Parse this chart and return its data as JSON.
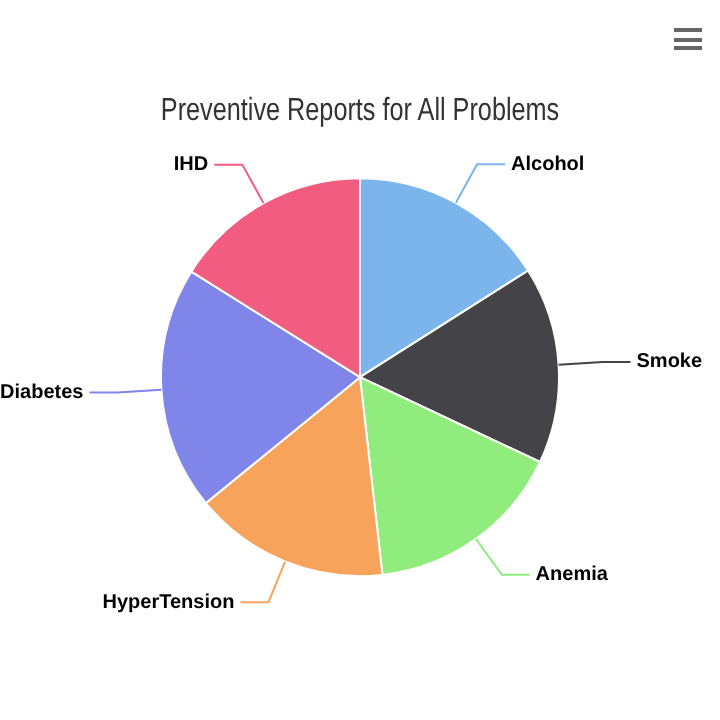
{
  "chart_data": {
    "type": "pie",
    "title": "Preventive Reports for All Problems",
    "categories": [
      "Alcohol",
      "Smoke",
      "Anemia",
      "HyperTension",
      "Diabetes",
      "IHD"
    ],
    "values": [
      16,
      16,
      16.2,
      15.9,
      19.8,
      16.1
    ],
    "colors": [
      "#7cb5ec",
      "#434348",
      "#90ed7d",
      "#f7a35c",
      "#8085e9",
      "#f15c80"
    ],
    "legend": false
  }
}
